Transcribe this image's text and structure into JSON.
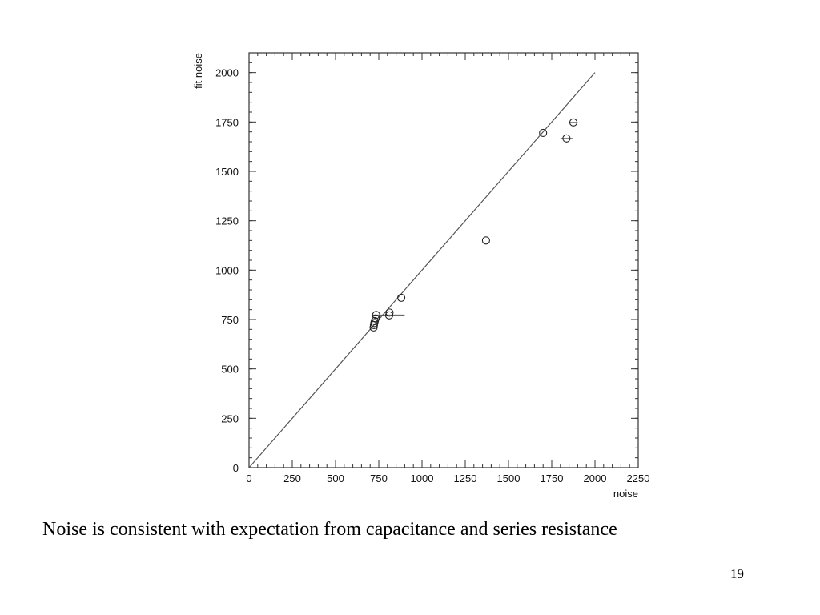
{
  "slide": {
    "caption": "Noise is consistent with expectation from capacitance and series resistance",
    "page_number": "19"
  },
  "chart_data": {
    "type": "scatter",
    "title": "",
    "xlabel": "noise",
    "ylabel": "fit noise",
    "xlim": [
      0,
      2250
    ],
    "ylim": [
      0,
      2100
    ],
    "x_ticks": [
      0,
      250,
      500,
      750,
      1000,
      1250,
      1500,
      1750,
      2000,
      2250
    ],
    "y_ticks": [
      0,
      250,
      500,
      750,
      1000,
      1250,
      1500,
      1750,
      2000
    ],
    "grid": false,
    "marker": "open-circle",
    "points": [
      {
        "x": 720,
        "y": 710
      },
      {
        "x": 722,
        "y": 722
      },
      {
        "x": 724,
        "y": 732
      },
      {
        "x": 727,
        "y": 742
      },
      {
        "x": 732,
        "y": 755
      },
      {
        "x": 735,
        "y": 773,
        "xerr": [
          25,
          165
        ]
      },
      {
        "x": 810,
        "y": 771
      },
      {
        "x": 812,
        "y": 785
      },
      {
        "x": 880,
        "y": 860
      },
      {
        "x": 1370,
        "y": 1150
      },
      {
        "x": 1700,
        "y": 1695
      },
      {
        "x": 1835,
        "y": 1667,
        "xerr": [
          35,
          35
        ]
      },
      {
        "x": 1875,
        "y": 1748,
        "xerr": [
          25,
          25
        ]
      }
    ],
    "reference_line": {
      "label": "",
      "x": [
        0,
        2000
      ],
      "y": [
        0,
        2000
      ]
    }
  }
}
